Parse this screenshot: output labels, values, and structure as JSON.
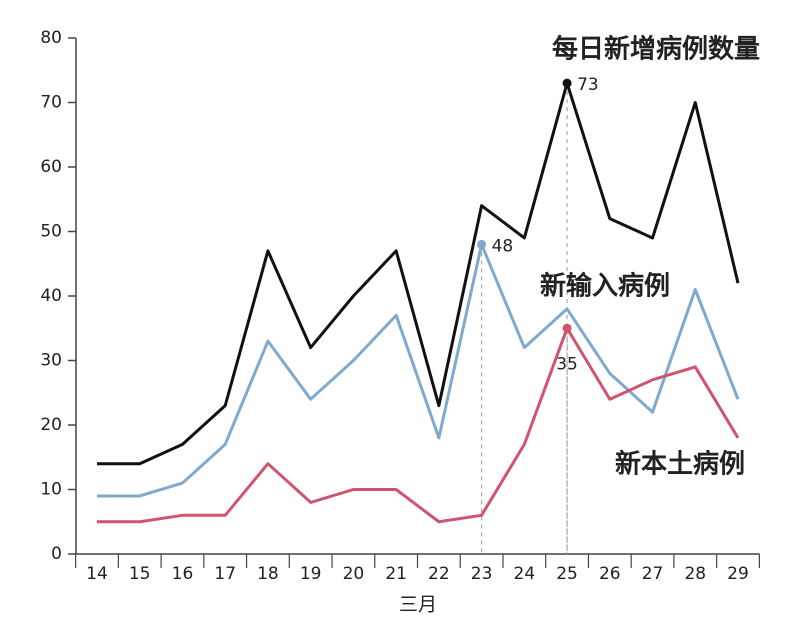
{
  "chart_data": {
    "type": "line",
    "title": "每日新增病例数量",
    "x_label": "三月",
    "categories": [
      "14",
      "15",
      "16",
      "17",
      "18",
      "19",
      "20",
      "21",
      "22",
      "23",
      "24",
      "25",
      "26",
      "27",
      "28",
      "29"
    ],
    "ylim": [
      0,
      80
    ],
    "yticks": [
      0,
      10,
      20,
      30,
      40,
      50,
      60,
      70,
      80
    ],
    "grid": false,
    "series": [
      {
        "color": "#111111",
        "labeled_index": 11,
        "values": [
          14,
          14,
          17,
          23,
          47,
          32,
          40,
          47,
          23,
          54,
          49,
          73,
          52,
          49,
          70,
          42
        ]
      },
      {
        "name": "新输入病例",
        "color": "#7fa9cf",
        "labeled_index": 9,
        "values": [
          9,
          9,
          11,
          17,
          33,
          24,
          30,
          37,
          18,
          48,
          32,
          38,
          28,
          22,
          41,
          24
        ]
      },
      {
        "name": "新本土病例",
        "color": "#d0546f",
        "labeled_index": 11,
        "values": [
          5,
          5,
          6,
          6,
          14,
          8,
          10,
          10,
          5,
          6,
          17,
          35,
          24,
          27,
          29,
          18
        ]
      }
    ]
  }
}
